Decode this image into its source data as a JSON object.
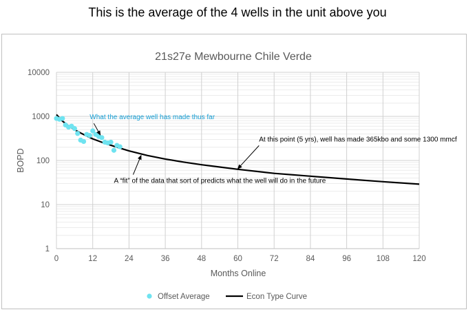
{
  "headline": "This is the average of the 4 wells in the unit above you",
  "chart_data": {
    "type": "scatter",
    "title": "21s27e Mewbourne Chile Verde",
    "xlabel": "Months Online",
    "ylabel": "BOPD",
    "xlim": [
      0,
      120
    ],
    "ylim": [
      1,
      10000
    ],
    "yscale": "log",
    "xticks": [
      0,
      12,
      24,
      36,
      48,
      60,
      72,
      84,
      96,
      108,
      120
    ],
    "yticks": [
      1,
      10,
      100,
      1000,
      10000
    ],
    "grid": "on",
    "legend_position": "bottom",
    "series": [
      {
        "name": "Offset Average",
        "kind": "scatter",
        "color": "#6fe3f0",
        "points": [
          [
            0,
            900
          ],
          [
            1,
            860
          ],
          [
            2,
            900
          ],
          [
            3,
            640
          ],
          [
            4,
            570
          ],
          [
            5,
            600
          ],
          [
            6,
            530
          ],
          [
            7,
            410
          ],
          [
            8,
            290
          ],
          [
            9,
            270
          ],
          [
            10,
            390
          ],
          [
            11,
            370
          ],
          [
            12,
            470
          ],
          [
            13,
            390
          ],
          [
            14,
            350
          ],
          [
            15,
            330
          ],
          [
            16,
            260
          ],
          [
            17,
            250
          ],
          [
            18,
            260
          ],
          [
            19,
            170
          ],
          [
            20,
            220
          ],
          [
            21,
            205
          ]
        ]
      },
      {
        "name": "Econ Type Curve",
        "kind": "line",
        "color": "#000000",
        "points": [
          [
            0,
            1100
          ],
          [
            2,
            780
          ],
          [
            4,
            610
          ],
          [
            6,
            500
          ],
          [
            8,
            420
          ],
          [
            10,
            360
          ],
          [
            12,
            310
          ],
          [
            16,
            245
          ],
          [
            20,
            200
          ],
          [
            24,
            165
          ],
          [
            30,
            130
          ],
          [
            36,
            108
          ],
          [
            42,
            92
          ],
          [
            48,
            80
          ],
          [
            54,
            71
          ],
          [
            60,
            63
          ],
          [
            72,
            51
          ],
          [
            84,
            44
          ],
          [
            96,
            38
          ],
          [
            108,
            33
          ],
          [
            120,
            29
          ]
        ]
      }
    ],
    "annotations": [
      {
        "text": "What the average well has made thus far",
        "color": "#1aa3d9",
        "at": [
          11,
          860
        ],
        "arrow_to": [
          14.5,
          380
        ]
      },
      {
        "text": "At this point (5 yrs), well has made 365kbo and some 1300 mmcf",
        "color": "#000000",
        "at": [
          67,
          270
        ],
        "arrow_to": [
          60,
          65
        ]
      },
      {
        "text": "A “fit” of the data that sort of predicts what the well will do in the future",
        "color": "#000000",
        "at": [
          19,
          31
        ],
        "arrow_to": [
          28,
          130
        ]
      }
    ]
  }
}
